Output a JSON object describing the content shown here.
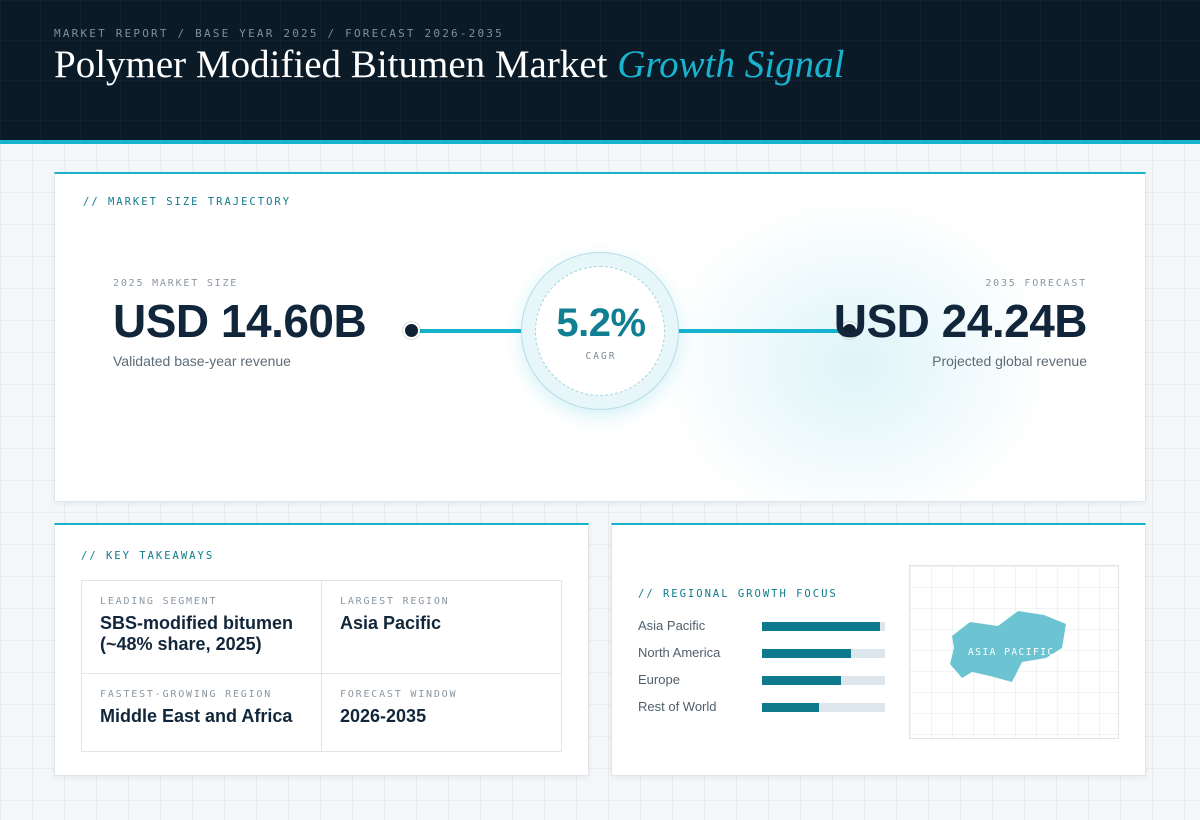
{
  "header": {
    "eyebrow": "MARKET REPORT / BASE YEAR 2025 / FORECAST 2026-2035",
    "title_main": "Polymer Modified Bitumen Market",
    "title_accent": "Growth Signal"
  },
  "trajectory": {
    "label": "// MARKET SIZE TRAJECTORY",
    "base": {
      "label": "2025 MARKET SIZE",
      "value": "USD 14.60B",
      "caption": "Validated base-year revenue"
    },
    "forecast": {
      "label": "2035 FORECAST",
      "value": "USD 24.24B",
      "caption": "Projected global revenue"
    },
    "cagr": {
      "value": "5.2%",
      "label": "CAGR"
    }
  },
  "takeaways": {
    "label": "// KEY TAKEAWAYS",
    "items": [
      {
        "key": "LEADING SEGMENT",
        "value": "SBS-modified bitumen (~48% share, 2025)"
      },
      {
        "key": "LARGEST REGION",
        "value": "Asia Pacific"
      },
      {
        "key": "FASTEST-GROWING REGION",
        "value": "Middle East and Africa"
      },
      {
        "key": "FORECAST WINDOW",
        "value": "2026-2035"
      }
    ]
  },
  "regional": {
    "label": "// REGIONAL GROWTH FOCUS",
    "regions": [
      {
        "name": "Asia Pacific",
        "level": 0.96
      },
      {
        "name": "North America",
        "level": 0.72
      },
      {
        "name": "Europe",
        "level": 0.64
      },
      {
        "name": "Rest of World",
        "level": 0.46
      }
    ],
    "map_label": "ASIA PACIFIC"
  },
  "colors": {
    "accent": "#16b3cf",
    "bar_fill": "#0f7a8c",
    "header_bg": "#0b1a27",
    "map_fill": "#6cc4d2"
  }
}
